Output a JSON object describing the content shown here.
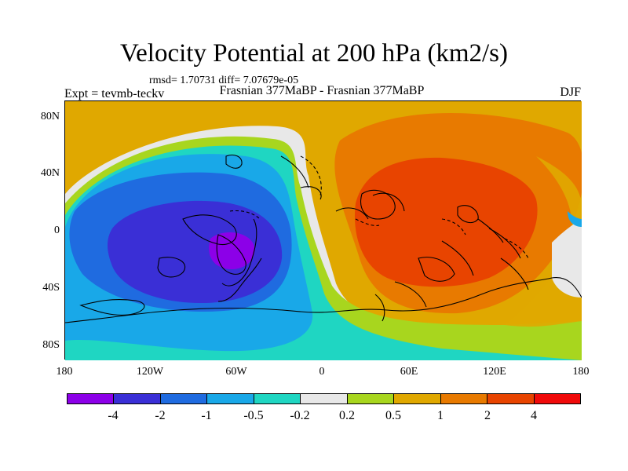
{
  "title": "Velocity Potential at 200 hPa (km2/s)",
  "stats": "rmsd= 1.70731  diff= 7.07679e-05",
  "left_label": "Expt = tevmb-teckv",
  "center_label": "Frasnian 377MaBP - Frasnian 377MaBP",
  "right_label": "DJF",
  "map": {
    "lat_ticks": [
      "80N",
      "40N",
      "0",
      "40S",
      "80S"
    ],
    "lon_ticks": [
      "180",
      "120W",
      "60W",
      "0",
      "60E",
      "120E",
      "180"
    ],
    "fields": {
      "negative_center": "velocity-potential minimum over western hemisphere (about -4 km2/s)",
      "positive_center": "velocity-potential maximum over eastern hemisphere (about 4 km2/s)"
    }
  },
  "colorbar": {
    "colors": [
      "#8c00e8",
      "#3a2fd6",
      "#1f6be0",
      "#19a8e8",
      "#1fd6c2",
      "#e8e8e8",
      "#a8d61e",
      "#e0a800",
      "#e87a00",
      "#e84400",
      "#f00a0a"
    ],
    "labels": [
      "-4",
      "-2",
      "-1",
      "-0.5",
      "-0.2",
      "0.2",
      "0.5",
      "1",
      "2",
      "4"
    ]
  }
}
